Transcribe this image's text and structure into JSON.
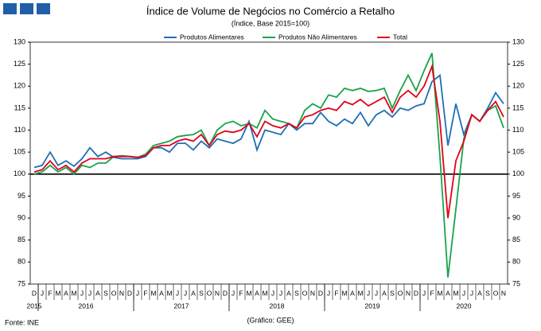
{
  "chart_data": {
    "type": "line",
    "title": "Índice de Volume  de Negócios no Comércio a Retalho",
    "subtitle": "(Índice, Base 2015=100)",
    "source": "Fonte: INE",
    "credit": "(Gráfico: GEE)",
    "categories": [
      "D",
      "J",
      "F",
      "M",
      "A",
      "M",
      "J",
      "J",
      "A",
      "S",
      "O",
      "N",
      "D",
      "J",
      "F",
      "M",
      "A",
      "M",
      "J",
      "J",
      "A",
      "S",
      "O",
      "N",
      "D",
      "J",
      "F",
      "M",
      "A",
      "M",
      "J",
      "J",
      "A",
      "S",
      "O",
      "N",
      "D",
      "J",
      "F",
      "M",
      "A",
      "M",
      "J",
      "J",
      "A",
      "S",
      "O",
      "N",
      "D",
      "J",
      "F",
      "M",
      "A",
      "M",
      "J",
      "J",
      "A",
      "S",
      "O",
      "N"
    ],
    "years": [
      "2015",
      "2016",
      "2017",
      "2018",
      "2019",
      "2020"
    ],
    "series": [
      {
        "name": "Produtos Alimentares",
        "color": "#1f6fb4",
        "values": [
          101.5,
          102,
          105,
          102,
          103,
          101.8,
          103.5,
          106,
          104,
          105,
          103.8,
          103.5,
          103.5,
          103.5,
          104,
          106,
          106,
          105,
          107,
          107,
          105.5,
          107.5,
          106,
          108,
          107.5,
          107,
          108,
          112,
          105.5,
          110,
          109.5,
          109,
          111.5,
          110,
          111.5,
          111.5,
          114,
          112,
          111,
          112.5,
          111.5,
          114,
          111,
          113.5,
          114.5,
          113,
          115,
          114.5,
          115.5,
          116,
          121,
          122.5,
          106.5,
          116,
          109,
          113.5,
          112,
          115,
          118.5,
          116
        ]
      },
      {
        "name": "Produtos Não Alimentares",
        "color": "#1aa34a",
        "values": [
          100,
          100.5,
          102,
          100.5,
          101.5,
          100,
          102,
          101.5,
          102.5,
          102.5,
          104,
          104.2,
          104,
          103.8,
          104.5,
          106.5,
          107,
          107.5,
          108.5,
          108.8,
          109,
          110,
          106.5,
          110,
          111.5,
          112,
          111,
          111.5,
          110.5,
          114.5,
          112.5,
          112,
          111.5,
          110.5,
          114.5,
          116,
          115,
          118,
          117.5,
          119.5,
          119,
          119.5,
          118.8,
          119,
          119.5,
          115,
          119,
          122.5,
          119,
          123.5,
          127.5,
          104,
          76.5,
          92,
          108,
          113.5,
          112,
          114.5,
          115.5,
          110.5
        ]
      },
      {
        "name": "Total",
        "color": "#e3001b",
        "values": [
          100.5,
          101,
          103,
          101,
          102,
          100.5,
          102.5,
          103.5,
          103.5,
          103.5,
          104,
          104,
          104,
          103.8,
          104.2,
          106,
          106.5,
          106.5,
          107.5,
          108,
          107.5,
          109,
          106.5,
          109,
          109.8,
          109.5,
          110,
          111.5,
          108.5,
          112,
          111,
          110.5,
          111.5,
          110.5,
          113,
          113.5,
          114.5,
          115,
          114.5,
          116.5,
          115.8,
          117,
          115.5,
          116.5,
          117.5,
          114,
          117.5,
          119,
          117.5,
          120,
          124.5,
          112,
          90,
          103,
          107.5,
          113.5,
          112,
          114.5,
          116.5,
          113
        ]
      }
    ],
    "ylim": [
      75,
      130
    ],
    "yticks": [
      75,
      80,
      85,
      90,
      95,
      100,
      105,
      110,
      115,
      120,
      125,
      130
    ],
    "y2lim": [
      75,
      130
    ],
    "y2ticks": [
      75,
      80,
      85,
      90,
      95,
      100,
      105,
      110,
      115,
      120,
      125,
      130
    ],
    "hline": 100
  }
}
